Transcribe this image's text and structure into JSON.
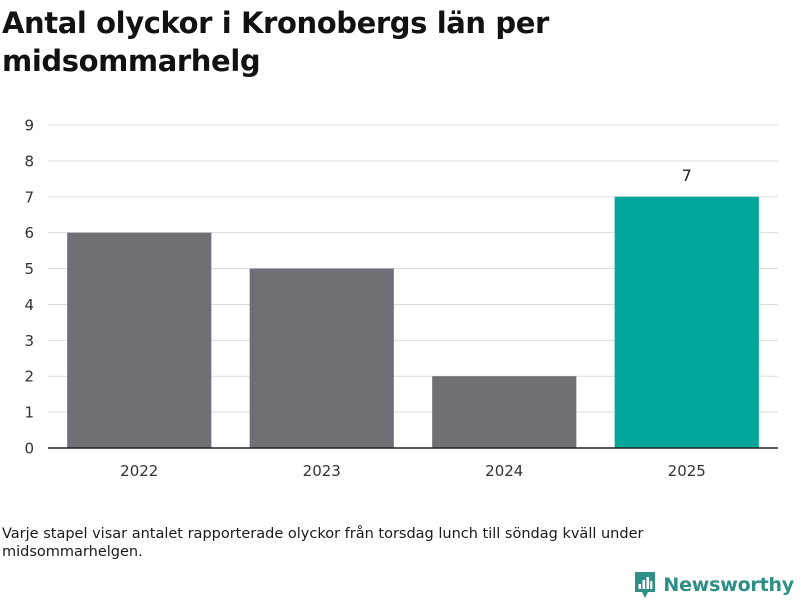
{
  "chart_data": {
    "type": "bar",
    "title": "Antal olyckor i Kronobergs län per midsommarhelg",
    "categories": [
      "2022",
      "2023",
      "2024",
      "2025"
    ],
    "values": [
      6,
      5,
      2,
      7
    ],
    "data_labels": [
      "",
      "",
      "",
      "7"
    ],
    "ylim": [
      0,
      9
    ],
    "yticks": [
      "0",
      "1",
      "2",
      "3",
      "4",
      "5",
      "6",
      "7",
      "8",
      "9"
    ],
    "grid": true,
    "colors": {
      "default_bar": "#706f75",
      "highlight_bar": "#00a69a",
      "grid": "#dddddd",
      "axis": "#222222"
    },
    "highlight_index": 3
  },
  "footnote": "Varje stapel visar antalet rapporterade olyckor från torsdag lunch till söndag kväll under midsommarhelgen.",
  "brand": {
    "name": "Newsworthy",
    "icon": "newsworthy-logo-icon",
    "color": "#2d8f86"
  }
}
